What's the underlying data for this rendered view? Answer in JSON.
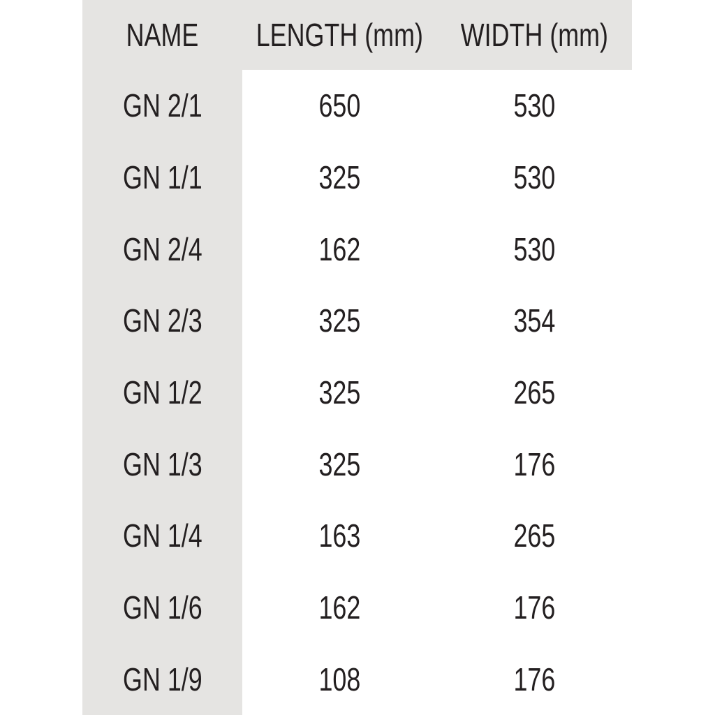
{
  "chart_data": {
    "type": "table",
    "columns": [
      "NAME",
      "LENGTH (mm)",
      "WIDTH (mm)"
    ],
    "rows": [
      [
        "GN 2/1",
        "650",
        "530"
      ],
      [
        "GN 1/1",
        "325",
        "530"
      ],
      [
        "GN 2/4",
        "162",
        "530"
      ],
      [
        "GN 2/3",
        "325",
        "354"
      ],
      [
        "GN 1/2",
        "325",
        "265"
      ],
      [
        "GN 1/3",
        "325",
        "176"
      ],
      [
        "GN 1/4",
        "163",
        "265"
      ],
      [
        "GN 1/6",
        "162",
        "176"
      ],
      [
        "GN 1/9",
        "108",
        "176"
      ]
    ],
    "title": "",
    "layout": {
      "header_background": "gray-band",
      "name_column_background": "gray-column",
      "grid": "off"
    }
  },
  "colors": {
    "header_bg": "#e5e4e2",
    "name_column_bg": "#e5e4e2",
    "text": "#231f20",
    "page_bg": "#ffffff"
  }
}
